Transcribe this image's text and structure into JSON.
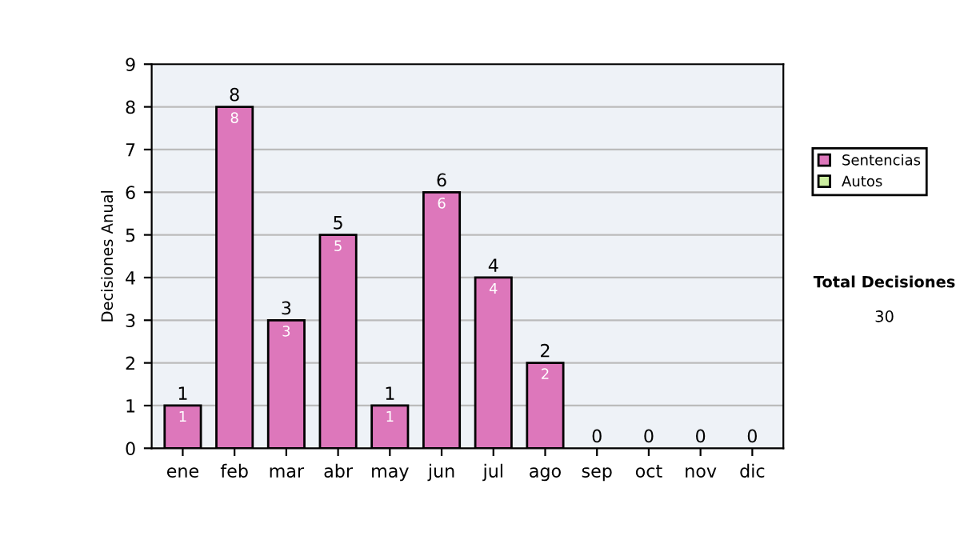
{
  "chart_data": {
    "type": "bar",
    "stacked": true,
    "ylabel": "Decisiones Anual",
    "categories": [
      "ene",
      "feb",
      "mar",
      "abr",
      "may",
      "jun",
      "jul",
      "ago",
      "sep",
      "oct",
      "nov",
      "dic"
    ],
    "series": [
      {
        "name": "Sentencias",
        "color": "#dd77bb",
        "values": [
          1,
          8,
          3,
          5,
          1,
          6,
          4,
          2,
          0,
          0,
          0,
          0
        ],
        "value_labels": [
          "1",
          "8",
          "3",
          "5",
          "1",
          "6",
          "4",
          "2",
          null,
          null,
          null,
          null
        ]
      },
      {
        "name": "Autos",
        "color": "#cceea0",
        "values": [
          0,
          0,
          0,
          0,
          0,
          0,
          0,
          0,
          0,
          0,
          0,
          0
        ]
      }
    ],
    "totals": [
      "1",
      "8",
      "3",
      "5",
      "1",
      "6",
      "4",
      "2",
      "0",
      "0",
      "0",
      "0"
    ],
    "ylim": [
      0,
      9
    ],
    "yticks": [
      0,
      1,
      2,
      3,
      4,
      5,
      6,
      7,
      8,
      9
    ],
    "grid": "y",
    "legend": "right",
    "annotations": [
      "Total Decisiones",
      "30"
    ]
  }
}
